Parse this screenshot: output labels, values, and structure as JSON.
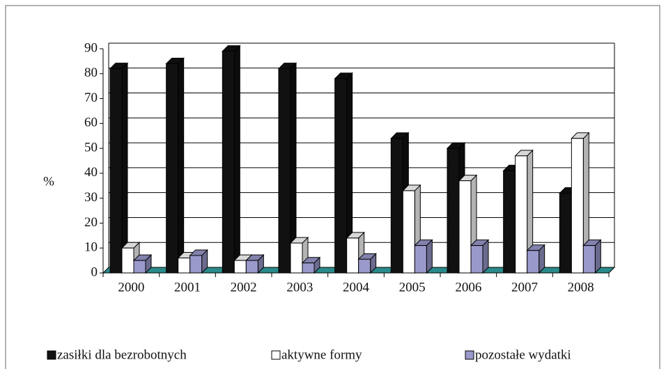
{
  "chart_data": {
    "type": "bar3d",
    "y_label": "%",
    "categories": [
      "2000",
      "2001",
      "2002",
      "2003",
      "2004",
      "2005",
      "2006",
      "2007",
      "2008"
    ],
    "series": [
      {
        "name": "zasiłki dla bezrobotnych",
        "color": "#111111",
        "values": [
          82,
          84,
          89,
          82,
          78,
          54,
          50,
          41,
          32
        ]
      },
      {
        "name": "aktywne formy",
        "color": "#ffffff",
        "values": [
          10,
          6,
          5,
          12,
          14,
          33,
          37,
          47,
          54
        ]
      },
      {
        "name": "pozostałe wydatki",
        "color": "#9999cc",
        "values": [
          5,
          7,
          5,
          4,
          5.5,
          11,
          11,
          9,
          11
        ]
      }
    ],
    "ylim": [
      0,
      90
    ],
    "yticks": [
      0,
      10,
      20,
      30,
      40,
      50,
      60,
      70,
      80,
      90
    ],
    "grid": true,
    "legend": "bottom"
  }
}
